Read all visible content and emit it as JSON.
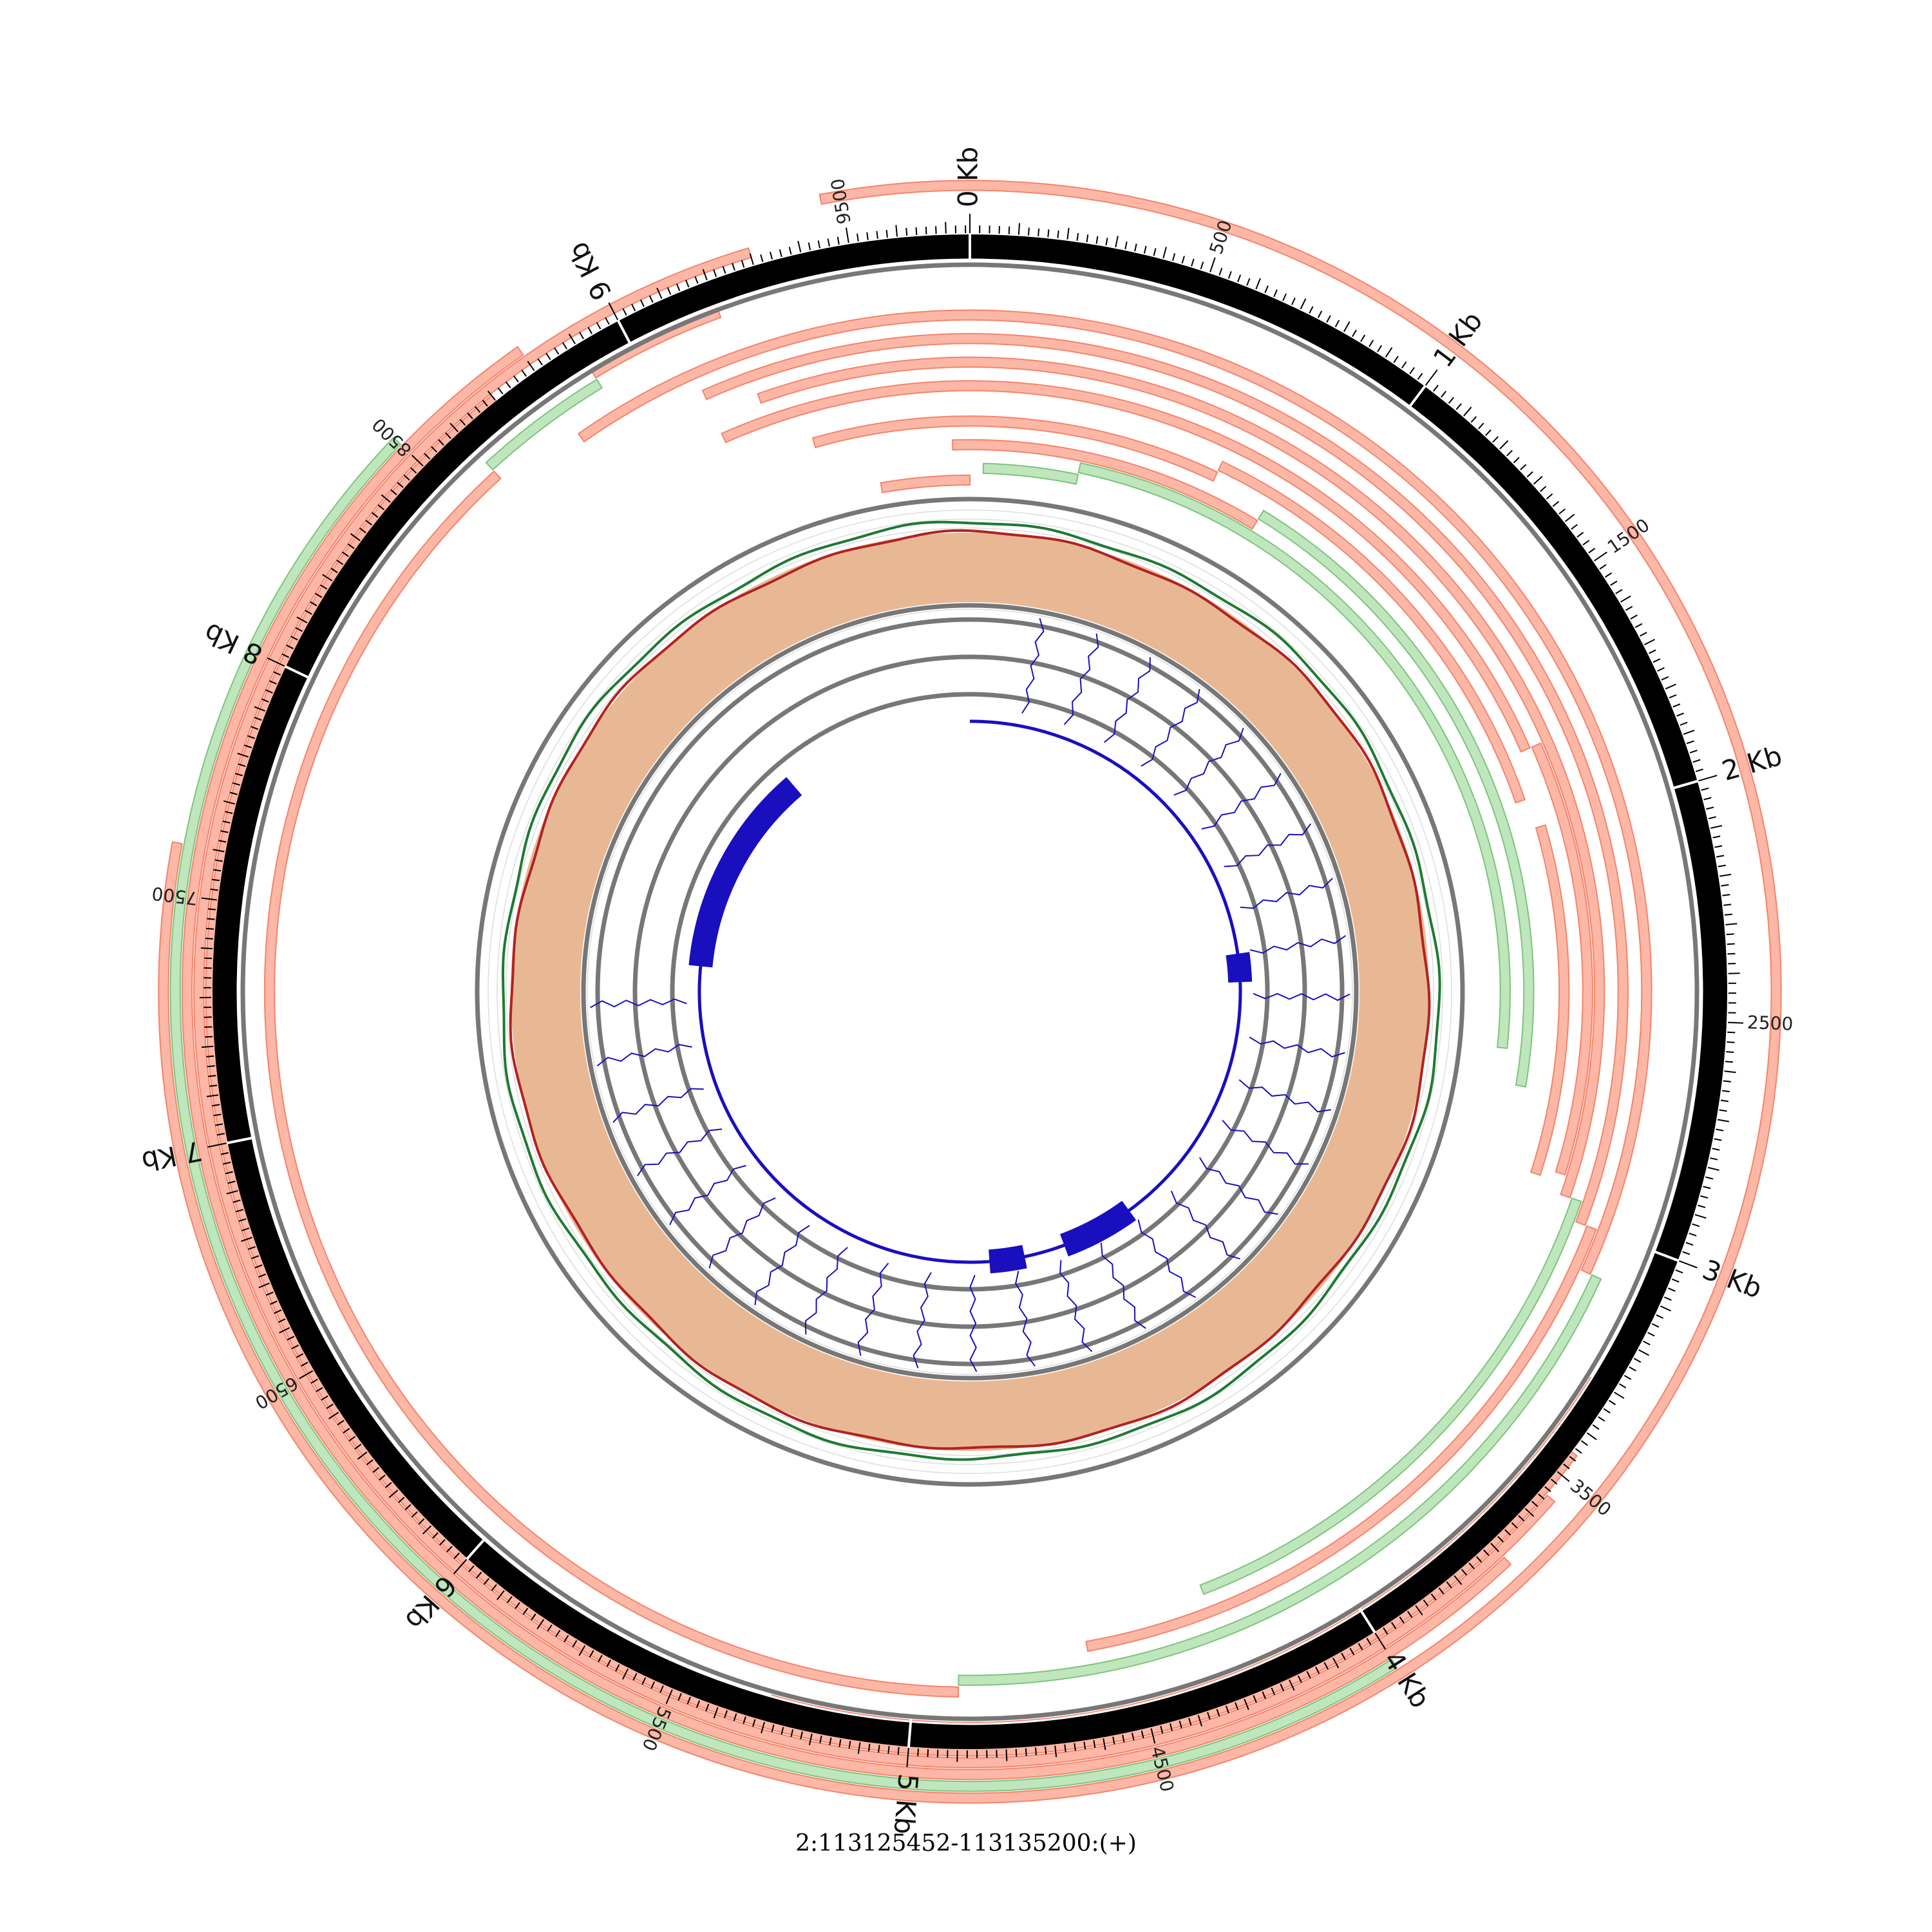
{
  "region_label": "2:113125452-113135200:(+)",
  "genome_length": 9749,
  "scale": {
    "major_labels": [
      {
        "pos": 0,
        "text": "0 Kb"
      },
      {
        "pos": 1000,
        "text": "1 Kb"
      },
      {
        "pos": 2000,
        "text": "2 Kb"
      },
      {
        "pos": 3000,
        "text": "3 Kb"
      },
      {
        "pos": 4000,
        "text": "4 Kb"
      },
      {
        "pos": 5000,
        "text": "5 Kb"
      },
      {
        "pos": 6000,
        "text": "6 Kb"
      },
      {
        "pos": 7000,
        "text": "7 Kb"
      },
      {
        "pos": 8000,
        "text": "8 Kb"
      },
      {
        "pos": 9000,
        "text": "9 Kb"
      }
    ],
    "minor_labels": [
      {
        "pos": 500,
        "text": "500"
      },
      {
        "pos": 1500,
        "text": "1500"
      },
      {
        "pos": 2500,
        "text": "2500"
      },
      {
        "pos": 3500,
        "text": "3500"
      },
      {
        "pos": 4500,
        "text": "4500"
      },
      {
        "pos": 5500,
        "text": "5500"
      },
      {
        "pos": 6500,
        "text": "6500"
      },
      {
        "pos": 7500,
        "text": "7500"
      },
      {
        "pos": 8500,
        "text": "8500"
      },
      {
        "pos": 9500,
        "text": "9500"
      }
    ]
  },
  "colors": {
    "ideogram": "#000000",
    "track_ring": "#777777",
    "read_forward": "#f4846c",
    "read_forward_fill": "#fcb7a6",
    "read_reverse": "#7dc47d",
    "read_reverse_fill": "#bfe6bc",
    "coverage_fill": "#e8b894",
    "coverage_line_red": "#b22222",
    "coverage_line_green": "#1e7a32",
    "gene": "#1a0fbf"
  },
  "tracks": {
    "reads": [
      {
        "strand": "+",
        "start": 9480,
        "end": 0
      },
      {
        "strand": "-",
        "start": 40,
        "end": 320
      },
      {
        "strand": "-",
        "start": 320,
        "end": 2600
      },
      {
        "strand": "+",
        "start": 9700,
        "end": 850
      },
      {
        "strand": "-",
        "start": 850,
        "end": 2700
      },
      {
        "strand": "+",
        "start": 9320,
        "end": 690
      },
      {
        "strand": "+",
        "start": 690,
        "end": 1920
      },
      {
        "strand": "+",
        "start": 2000,
        "end": 2920
      },
      {
        "strand": "+",
        "start": 9100,
        "end": 1800
      },
      {
        "strand": "+",
        "start": 1800,
        "end": 2900
      },
      {
        "strand": "+",
        "start": 9220,
        "end": 2950
      },
      {
        "strand": "-",
        "start": 2950,
        "end": 4300
      },
      {
        "strand": "+",
        "start": 9100,
        "end": 3000
      },
      {
        "strand": "+",
        "start": 3000,
        "end": 4600
      },
      {
        "strand": "+",
        "start": 8800,
        "end": 3100
      },
      {
        "strand": "-",
        "start": 3100,
        "end": 4900
      },
      {
        "strand": "+",
        "start": 4900,
        "end": 8600
      },
      {
        "strand": "-",
        "start": 8600,
        "end": 8900
      },
      {
        "strand": "+",
        "start": 8900,
        "end": 9200
      },
      {
        "strand": "+",
        "start": 3300,
        "end": 5300
      },
      {
        "strand": "-",
        "start": 5300,
        "end": 8300
      },
      {
        "strand": "+",
        "start": 3450,
        "end": 8700
      },
      {
        "strand": "+",
        "start": 3550,
        "end": 9300
      },
      {
        "strand": "+",
        "start": 3700,
        "end": 8800
      },
      {
        "strand": "-",
        "start": 4000,
        "end": 8500
      },
      {
        "strand": "+",
        "start": 9460,
        "end": 7600
      }
    ],
    "gene": {
      "line_start": 0,
      "line_end": 7500,
      "exons": [
        {
          "start": 2220,
          "end": 2380
        },
        {
          "start": 3900,
          "end": 4320
        },
        {
          "start": 4560,
          "end": 4760
        },
        {
          "start": 7460,
          "end": 8650
        }
      ]
    }
  }
}
